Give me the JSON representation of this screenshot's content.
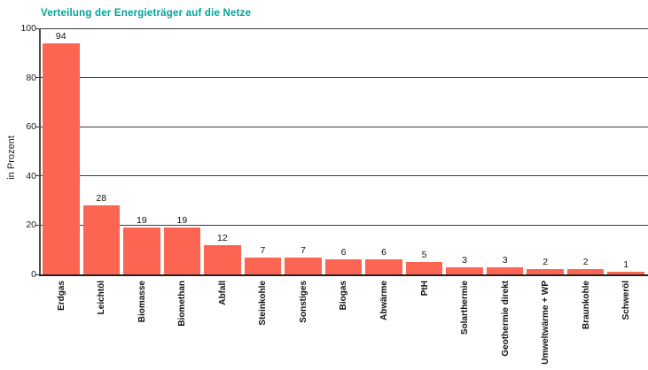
{
  "chart_data": {
    "type": "bar",
    "title": "Verteilung der Energieträger auf die Netze",
    "xlabel": "",
    "ylabel": "in Prozent",
    "categories": [
      "Erdgas",
      "Leichtöl",
      "Biomasse",
      "Biomethan",
      "Abfall",
      "Steinkohle",
      "Sonstiges",
      "Biogas",
      "Abwärme",
      "PtH",
      "Solarthermie",
      "Geothermie direkt",
      "Umweltwärme + WP",
      "Braunkohle",
      "Schweröl"
    ],
    "values": [
      94,
      28,
      19,
      19,
      12,
      7,
      7,
      6,
      6,
      5,
      3,
      3,
      2,
      2,
      1
    ],
    "ylim": [
      0,
      100
    ],
    "yticks": [
      0,
      20,
      40,
      60,
      80,
      100
    ],
    "grid": "horizontal",
    "legend": "none",
    "value_labels_shown": true,
    "bar_color": "#FB6552",
    "title_color": "#00A29B",
    "gridline_color": "#3d3d3d"
  }
}
